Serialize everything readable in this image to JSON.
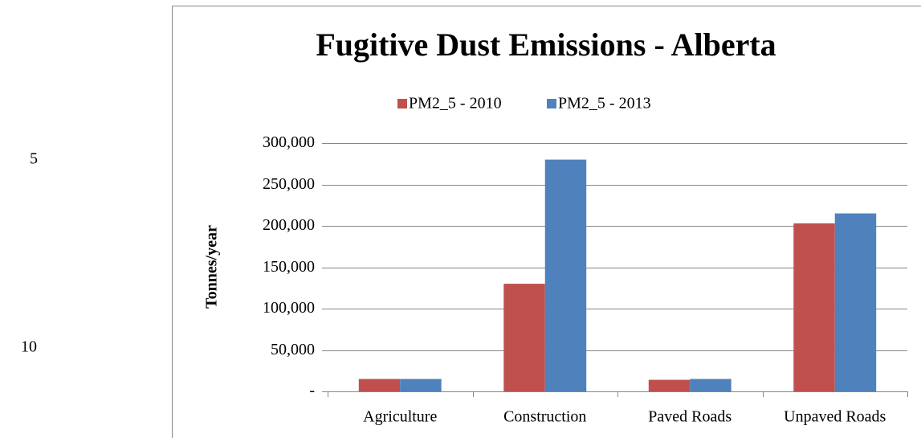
{
  "line_numbers": [
    5,
    10
  ],
  "chart_data": {
    "type": "bar",
    "title": "Fugitive Dust Emissions - Alberta",
    "y_label": "Tonnes/year",
    "categories": [
      "Agriculture",
      "Construction",
      "Paved Roads",
      "Unpaved Roads"
    ],
    "series": [
      {
        "name": "PM2_5 - 2010",
        "color": "#c0504d",
        "values": [
          15000,
          130000,
          14000,
          203000
        ]
      },
      {
        "name": "PM2_5 - 2013",
        "color": "#4f81bd",
        "values": [
          15000,
          280000,
          15000,
          215000
        ]
      }
    ],
    "ylim": [
      0,
      300000
    ],
    "yticks": [
      {
        "value": 0,
        "label": "-"
      },
      {
        "value": 50000,
        "label": "50,000"
      },
      {
        "value": 100000,
        "label": "100,000"
      },
      {
        "value": 150000,
        "label": "150,000"
      },
      {
        "value": 200000,
        "label": "200,000"
      },
      {
        "value": 250000,
        "label": "250,000"
      },
      {
        "value": 300000,
        "label": "300,000"
      }
    ],
    "grid": true,
    "legend": "top"
  }
}
